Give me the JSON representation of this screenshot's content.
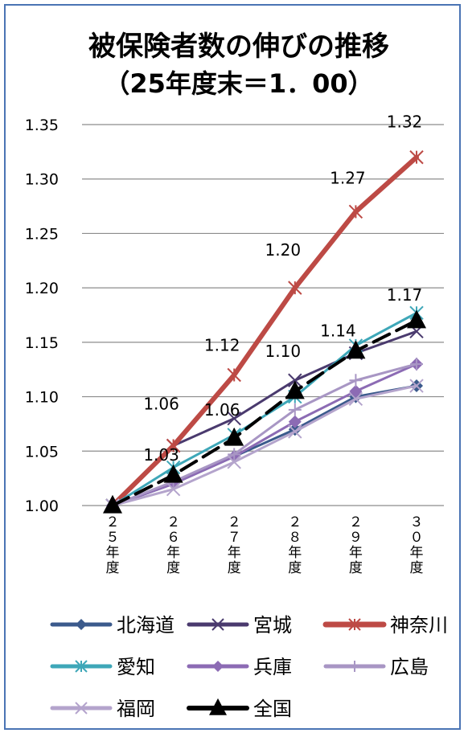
{
  "chart_data": {
    "type": "line",
    "title": "被保険者数の伸びの推移",
    "subtitle": "（25年度末＝1．00）",
    "categories": [
      "２５年度",
      "２６年度",
      "２７年度",
      "２８年度",
      "２９年度",
      "３０年度"
    ],
    "ylim": [
      1.0,
      1.35
    ],
    "yticks": [
      "1.00",
      "1.05",
      "1.10",
      "1.15",
      "1.20",
      "1.25",
      "1.30",
      "1.35"
    ],
    "grid": true,
    "legend_position": "bottom",
    "series": [
      {
        "name": "北海道",
        "marker": "diamond",
        "color": "#3b5a8c",
        "width": 3,
        "values": [
          1.0,
          1.02,
          1.045,
          1.07,
          1.1,
          1.11
        ]
      },
      {
        "name": "宮城",
        "marker": "x",
        "color": "#4a3a6e",
        "width": 3,
        "values": [
          1.0,
          1.055,
          1.08,
          1.115,
          1.14,
          1.16
        ]
      },
      {
        "name": "神奈川",
        "marker": "asterisk",
        "color": "#bd4a45",
        "width": 6,
        "values": [
          1.0,
          1.055,
          1.12,
          1.2,
          1.27,
          1.32
        ]
      },
      {
        "name": "愛知",
        "marker": "asterisk",
        "color": "#3ea7b8",
        "width": 3,
        "values": [
          1.0,
          1.035,
          1.065,
          1.1,
          1.147,
          1.177
        ]
      },
      {
        "name": "兵庫",
        "marker": "diamond",
        "color": "#8c6bb4",
        "width": 3,
        "values": [
          1.0,
          1.02,
          1.045,
          1.077,
          1.105,
          1.13
        ]
      },
      {
        "name": "広島",
        "marker": "plus",
        "color": "#a896c4",
        "width": 3,
        "values": [
          1.0,
          1.022,
          1.047,
          1.088,
          1.115,
          1.13
        ]
      },
      {
        "name": "福岡",
        "marker": "x",
        "color": "#b4a4cc",
        "width": 3,
        "values": [
          1.0,
          1.015,
          1.04,
          1.068,
          1.098,
          1.11
        ]
      },
      {
        "name": "全国",
        "marker": "triangle",
        "color": "#000000",
        "width": 4,
        "dashed": true,
        "values": [
          1.0,
          1.028,
          1.062,
          1.105,
          1.142,
          1.17
        ]
      }
    ],
    "annotations": [
      {
        "text": "1.06",
        "x": "２６年度",
        "y": 1.055
      },
      {
        "text": "1.03",
        "x": "２６年度",
        "y": 1.028
      },
      {
        "text": "1.12",
        "x": "２７年度",
        "y": 1.12
      },
      {
        "text": "1.06",
        "x": "２７年度",
        "y": 1.062
      },
      {
        "text": "1.20",
        "x": "２８年度",
        "y": 1.2
      },
      {
        "text": "1.10",
        "x": "２８年度",
        "y": 1.105
      },
      {
        "text": "1.27",
        "x": "２９年度",
        "y": 1.27
      },
      {
        "text": "1.14",
        "x": "２９年度",
        "y": 1.142
      },
      {
        "text": "1.32",
        "x": "３０年度",
        "y": 1.32
      },
      {
        "text": "1.17",
        "x": "３０年度",
        "y": 1.17
      }
    ]
  }
}
